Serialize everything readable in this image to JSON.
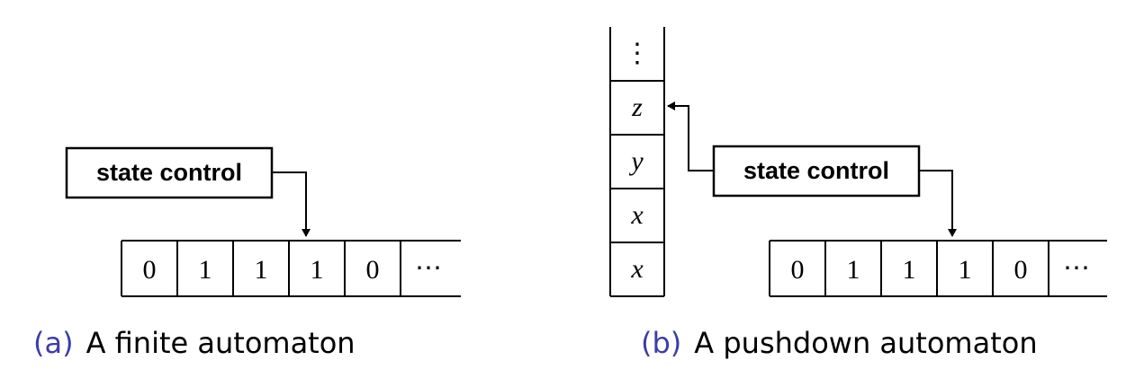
{
  "colors": {
    "caption_tag": "#3c3ca8",
    "ink": "#000000"
  },
  "finite": {
    "state_label": "state control",
    "tape": [
      "0",
      "1",
      "1",
      "1",
      "0",
      "⋯"
    ],
    "caption_tag": "(a)",
    "caption_text": "A finite automaton"
  },
  "pushdown": {
    "state_label": "state control",
    "stack": [
      "⋮",
      "z",
      "y",
      "x",
      "x"
    ],
    "tape": [
      "0",
      "1",
      "1",
      "1",
      "0",
      "⋯"
    ],
    "caption_tag": "(b)",
    "caption_text": "A pushdown automaton"
  }
}
